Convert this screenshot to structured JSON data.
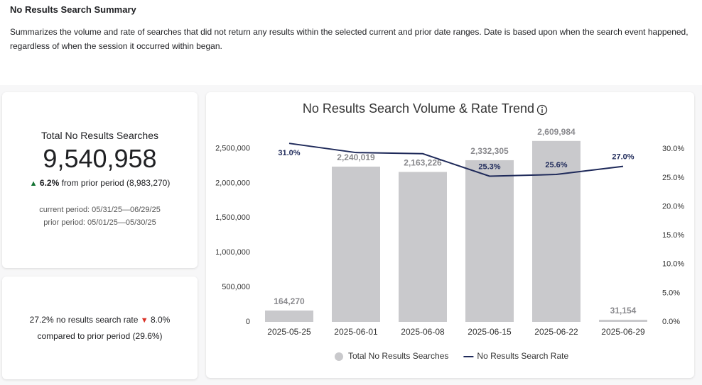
{
  "header": {
    "title": "No Results Search Summary",
    "description": "Summarizes the volume and rate of searches that did not return any results within the selected current and prior date ranges. Date is based upon when the search event happened, regardless of when the session it occurred within began."
  },
  "kpi_volume": {
    "label": "Total No Results Searches",
    "value": "9,540,958",
    "change": "6.2%",
    "change_text": "from prior period (8,983,270)",
    "current_period": "current period: 05/31/25—06/29/25",
    "prior_period": "prior period: 05/01/25—05/30/25"
  },
  "kpi_rate": {
    "value_text": "27.2% no results search rate",
    "change": "8.0%",
    "compare_text": "compared to prior period (29.6%)"
  },
  "chart_data": {
    "type": "bar-line",
    "title": "No Results Search Volume & Rate Trend",
    "categories": [
      "2025-05-25",
      "2025-06-01",
      "2025-06-08",
      "2025-06-15",
      "2025-06-22",
      "2025-06-29"
    ],
    "series": [
      {
        "name": "Total No Results Searches",
        "type": "bar",
        "color": "#c9c9cc",
        "values": [
          164270,
          2240019,
          2163226,
          2332305,
          2609984,
          31154
        ],
        "value_labels": [
          "164,270",
          "2,240,019",
          "2,163,226",
          "2,332,305",
          "2,609,984",
          "31,154"
        ]
      },
      {
        "name": "No Results Search Rate",
        "type": "line",
        "axis": "y2",
        "color": "#1f2a5a",
        "values": [
          31.0,
          29.4,
          29.2,
          25.3,
          25.6,
          27.0
        ],
        "value_labels": [
          "31.0%",
          null,
          null,
          "25.3%",
          "25.6%",
          "27.0%"
        ]
      }
    ],
    "ylim": [
      0,
      2700000
    ],
    "yticks": [
      0,
      {
        "value": 500000,
        "label": "500,000"
      },
      {
        "value": 1000000,
        "label": "1,000,000"
      },
      {
        "value": 1500000,
        "label": "1,500,000"
      },
      {
        "value": 2000000,
        "label": "2,000,000"
      },
      {
        "value": 2500000,
        "label": "2,500,000"
      }
    ],
    "y2lim": [
      0,
      32.5
    ],
    "y2ticks": [
      {
        "value": 0,
        "label": "0.0%"
      },
      {
        "value": 5,
        "label": "5.0%"
      },
      {
        "value": 10,
        "label": "10.0%"
      },
      {
        "value": 15,
        "label": "15.0%"
      },
      {
        "value": 20,
        "label": "20.0%"
      },
      {
        "value": 25,
        "label": "25.0%"
      },
      {
        "value": 30,
        "label": "30.0%"
      }
    ],
    "legend": "bottom"
  }
}
